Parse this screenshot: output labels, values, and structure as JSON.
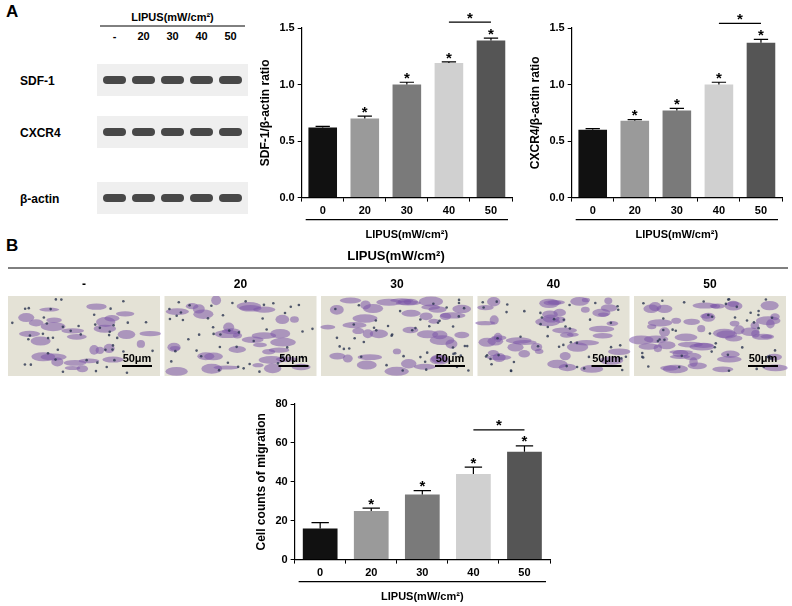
{
  "figure": {
    "panel_a": {
      "label": "A",
      "blot": {
        "title": "LIPUS(mW/cm²)",
        "lanes": [
          "-",
          "20",
          "30",
          "40",
          "50"
        ],
        "rows": [
          "SDF-1",
          "CXCR4",
          "β-actin"
        ]
      }
    },
    "panel_b": {
      "label": "B",
      "title": "LIPUS(mW/cm²)",
      "lanes": [
        "-",
        "20",
        "30",
        "40",
        "50"
      ],
      "scale_bar": "50μm"
    }
  },
  "chart_data": [
    {
      "type": "bar",
      "categories": [
        "0",
        "20",
        "30",
        "40",
        "50"
      ],
      "values": [
        0.62,
        0.7,
        1.0,
        1.19,
        1.39
      ],
      "errors": [
        0.01,
        0.02,
        0.02,
        0.01,
        0.02
      ],
      "colors": [
        "#111111",
        "#9a9a9a",
        "#7a7a7a",
        "#d0d0d0",
        "#555555"
      ],
      "y_label": "SDF-1/β-actin ratio",
      "x_label": "LIPUS(mW/cm²)",
      "ylim": [
        0,
        1.5
      ],
      "yticks": [
        {
          "value": 0,
          "label": "0.0"
        },
        {
          "value": 0.5,
          "label": "0.5"
        },
        {
          "value": 1,
          "label": "1.0"
        },
        {
          "value": 1.5,
          "label": "1.5"
        }
      ],
      "grid": false,
      "annotations": [
        {
          "x": "20",
          "text": "*"
        },
        {
          "x": "30",
          "text": "*"
        },
        {
          "x": "40",
          "text": "*"
        },
        {
          "x": "50",
          "text": "*"
        },
        {
          "x": [
            "40",
            "50"
          ],
          "text": "*"
        }
      ]
    },
    {
      "type": "bar",
      "categories": [
        "0",
        "20",
        "30",
        "40",
        "50"
      ],
      "values": [
        0.6,
        0.68,
        0.77,
        1.0,
        1.37
      ],
      "errors": [
        0.01,
        0.01,
        0.02,
        0.02,
        0.03
      ],
      "colors": [
        "#111111",
        "#9a9a9a",
        "#7a7a7a",
        "#d0d0d0",
        "#555555"
      ],
      "y_label": "CXCR4/β-actin ratio",
      "x_label": "LIPUS(mW/cm²)",
      "ylim": [
        0,
        1.5
      ],
      "yticks": [
        {
          "value": 0,
          "label": "0.0"
        },
        {
          "value": 0.5,
          "label": "0.5"
        },
        {
          "value": 1,
          "label": "1.0"
        },
        {
          "value": 1.5,
          "label": "1.5"
        }
      ],
      "grid": false,
      "annotations": [
        {
          "x": "20",
          "text": "*"
        },
        {
          "x": "30",
          "text": "*"
        },
        {
          "x": "40",
          "text": "*"
        },
        {
          "x": "50",
          "text": "*"
        },
        {
          "x": [
            "40",
            "50"
          ],
          "text": "*"
        }
      ]
    },
    {
      "type": "bar",
      "categories": [
        "0",
        "20",
        "30",
        "40",
        "50"
      ],
      "values": [
        16,
        25,
        33.5,
        44,
        55.5
      ],
      "errors": [
        3,
        1.5,
        2,
        3.5,
        3
      ],
      "colors": [
        "#111111",
        "#9a9a9a",
        "#7a7a7a",
        "#d0d0d0",
        "#555555"
      ],
      "y_label": "Cell counts of migration",
      "x_label": "LIPUS(mW/cm²)",
      "ylim": [
        0,
        80
      ],
      "yticks": [
        0,
        20,
        40,
        60,
        80
      ],
      "grid": false,
      "annotations": [
        {
          "x": "20",
          "text": "*"
        },
        {
          "x": "30",
          "text": "*"
        },
        {
          "x": "40",
          "text": "*"
        },
        {
          "x": "50",
          "text": "*"
        },
        {
          "x": [
            "40",
            "50"
          ],
          "text": "*"
        }
      ]
    }
  ]
}
